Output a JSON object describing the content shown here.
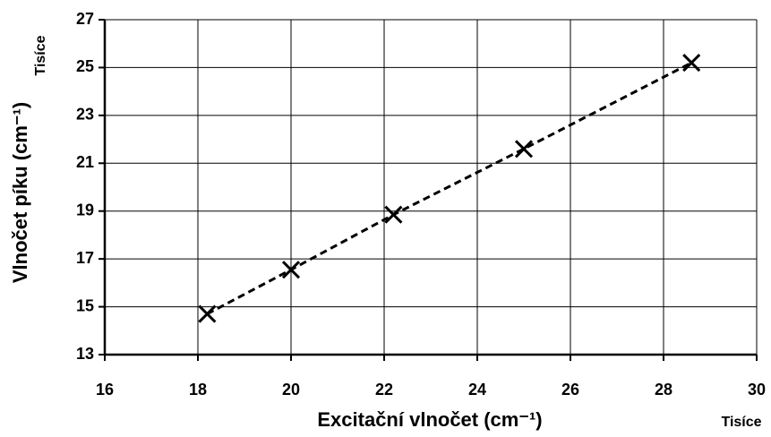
{
  "chart_data": {
    "type": "scatter",
    "x_label": "Excitační vlnočet (cm⁻¹)",
    "y_label": "Vlnočet píku (cm⁻¹)",
    "x_unit_label": "Tisíce",
    "y_unit_label": "Tisíce",
    "series": [
      {
        "x": [
          18.2,
          20.0,
          22.2,
          25.0,
          28.6
        ],
        "values": [
          14.7,
          16.55,
          18.85,
          21.6,
          25.2
        ],
        "color": "#000000"
      }
    ],
    "xlim": [
      16,
      30
    ],
    "xticks": [
      16,
      18,
      20,
      22,
      24,
      26,
      28,
      30
    ],
    "ylim": [
      13,
      27
    ],
    "yticks": [
      13,
      15,
      17,
      19,
      21,
      23,
      25,
      27
    ],
    "grid": true
  }
}
